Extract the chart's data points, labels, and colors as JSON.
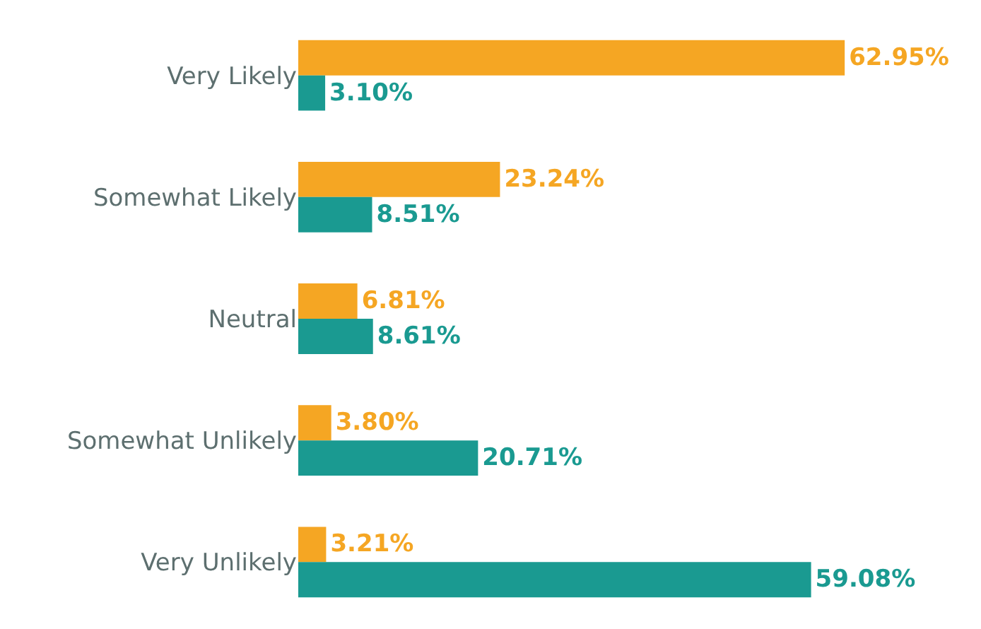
{
  "chart_data": {
    "type": "bar",
    "orientation": "horizontal",
    "categories": [
      "Very Likely",
      "Somewhat Likely",
      "Neutral",
      "Somewhat Unlikely",
      "Very Unlikely"
    ],
    "series": [
      {
        "color": "#f5a623",
        "values": [
          62.95,
          23.24,
          6.81,
          3.8,
          3.21
        ],
        "value_labels": [
          "62.95%",
          "23.24%",
          "6.81%",
          "3.80%",
          "3.21%"
        ]
      },
      {
        "color": "#1a9a91",
        "values": [
          3.1,
          8.51,
          8.61,
          20.71,
          59.08
        ],
        "value_labels": [
          "3.10%",
          "8.51%",
          "8.61%",
          "20.71%",
          "59.08%"
        ]
      }
    ],
    "xlim": [
      0,
      78
    ],
    "tick_labels": "y"
  }
}
